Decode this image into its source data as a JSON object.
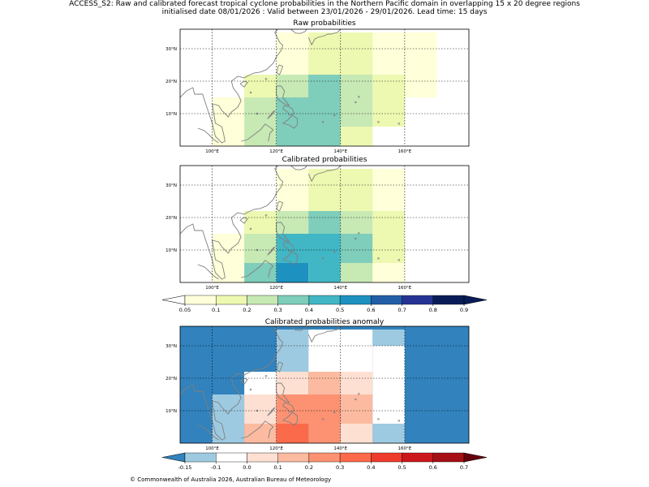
{
  "title": {
    "line1": "ACCESS_S2: Raw and calibrated forecast tropical cyclone probabilities in the Northern Pacific domain in overlapping 15 x 20 degree regions",
    "line2": "initialised date 08/01/2026 :  Valid between 23/01/2026 - 29/01/2026. Lead time: 15 days"
  },
  "footer": "© Commonwealth of Australia 2026, Australian Bureau of Meteorology",
  "colors": {
    "coast": "#808080",
    "grid": "#000000"
  },
  "chart_data": [
    {
      "type": "heatmap",
      "title": "Raw probabilities",
      "lon_range": [
        90,
        180
      ],
      "lat_range": [
        0,
        36
      ],
      "xticks": [
        100,
        120,
        140,
        160
      ],
      "xtick_labels": [
        "100°E",
        "120°E",
        "140°E",
        "160°E"
      ],
      "yticks": [
        10,
        20,
        30
      ],
      "ytick_labels": [
        "10°N",
        "20°N",
        "30°N"
      ],
      "cells": [
        {
          "lon": [
            100,
            110
          ],
          "lat": [
            0,
            15
          ],
          "color": "#ffffd9"
        },
        {
          "lon": [
            110,
            120
          ],
          "lat": [
            0,
            6
          ],
          "color": "#c7e9b4"
        },
        {
          "lon": [
            110,
            120
          ],
          "lat": [
            6,
            15
          ],
          "color": "#c7e9b4"
        },
        {
          "lon": [
            110,
            120
          ],
          "lat": [
            15,
            22
          ],
          "color": "#edf8b1"
        },
        {
          "lon": [
            120,
            140
          ],
          "lat": [
            0,
            22
          ],
          "color": "#7fcdbb"
        },
        {
          "lon": [
            120,
            130
          ],
          "lat": [
            15,
            22
          ],
          "color": "#c7e9b4"
        },
        {
          "lon": [
            120,
            130
          ],
          "lat": [
            22,
            30
          ],
          "color": "#ffffd9"
        },
        {
          "lon": [
            130,
            140
          ],
          "lat": [
            22,
            30
          ],
          "color": "#edf8b1"
        },
        {
          "lon": [
            130,
            140
          ],
          "lat": [
            15,
            22
          ],
          "color": "#7fcdbb"
        },
        {
          "lon": [
            140,
            150
          ],
          "lat": [
            15,
            22
          ],
          "color": "#c7e9b4"
        },
        {
          "lon": [
            140,
            150
          ],
          "lat": [
            6,
            15
          ],
          "color": "#c7e9b4"
        },
        {
          "lon": [
            140,
            150
          ],
          "lat": [
            0,
            6
          ],
          "color": "#edf8b1"
        },
        {
          "lon": [
            150,
            160
          ],
          "lat": [
            6,
            22
          ],
          "color": "#edf8b1"
        },
        {
          "lon": [
            130,
            150
          ],
          "lat": [
            22,
            30
          ],
          "color": "#edf8b1"
        },
        {
          "lon": [
            120,
            130
          ],
          "lat": [
            30,
            35
          ],
          "color": "#ffffd9"
        },
        {
          "lon": [
            130,
            150
          ],
          "lat": [
            30,
            35
          ],
          "color": "#edf8b1"
        },
        {
          "lon": [
            150,
            160
          ],
          "lat": [
            22,
            35
          ],
          "color": "#ffffd9"
        },
        {
          "lon": [
            160,
            170
          ],
          "lat": [
            15,
            35
          ],
          "color": "#ffffd9"
        }
      ]
    },
    {
      "type": "heatmap",
      "title": "Calibrated probabilities",
      "lon_range": [
        90,
        180
      ],
      "lat_range": [
        0,
        36
      ],
      "xticks": [
        100,
        120,
        140,
        160
      ],
      "xtick_labels": [
        "100°E",
        "120°E",
        "140°E",
        "160°E"
      ],
      "yticks": [
        10,
        20,
        30
      ],
      "ytick_labels": [
        "10°N",
        "20°N",
        "30°N"
      ],
      "cells": [
        {
          "lon": [
            100,
            110
          ],
          "lat": [
            0,
            15
          ],
          "color": "#ffffd9"
        },
        {
          "lon": [
            110,
            120
          ],
          "lat": [
            0,
            6
          ],
          "color": "#7fcdbb"
        },
        {
          "lon": [
            110,
            120
          ],
          "lat": [
            6,
            15
          ],
          "color": "#c7e9b4"
        },
        {
          "lon": [
            110,
            120
          ],
          "lat": [
            15,
            22
          ],
          "color": "#edf8b1"
        },
        {
          "lon": [
            120,
            130
          ],
          "lat": [
            0,
            6
          ],
          "color": "#1d91c0"
        },
        {
          "lon": [
            120,
            140
          ],
          "lat": [
            6,
            15
          ],
          "color": "#41b6c4"
        },
        {
          "lon": [
            130,
            140
          ],
          "lat": [
            0,
            6
          ],
          "color": "#41b6c4"
        },
        {
          "lon": [
            120,
            130
          ],
          "lat": [
            15,
            22
          ],
          "color": "#c7e9b4"
        },
        {
          "lon": [
            130,
            140
          ],
          "lat": [
            15,
            22
          ],
          "color": "#7fcdbb"
        },
        {
          "lon": [
            140,
            150
          ],
          "lat": [
            6,
            15
          ],
          "color": "#7fcdbb"
        },
        {
          "lon": [
            140,
            150
          ],
          "lat": [
            15,
            22
          ],
          "color": "#c7e9b4"
        },
        {
          "lon": [
            140,
            150
          ],
          "lat": [
            0,
            6
          ],
          "color": "#c7e9b4"
        },
        {
          "lon": [
            150,
            160
          ],
          "lat": [
            6,
            22
          ],
          "color": "#edf8b1"
        },
        {
          "lon": [
            150,
            160
          ],
          "lat": [
            0,
            6
          ],
          "color": "#ffffd9"
        },
        {
          "lon": [
            120,
            130
          ],
          "lat": [
            22,
            30
          ],
          "color": "#ffffd9"
        },
        {
          "lon": [
            130,
            150
          ],
          "lat": [
            22,
            30
          ],
          "color": "#edf8b1"
        },
        {
          "lon": [
            120,
            130
          ],
          "lat": [
            30,
            35
          ],
          "color": "#ffffd9"
        },
        {
          "lon": [
            130,
            150
          ],
          "lat": [
            30,
            35
          ],
          "color": "#edf8b1"
        },
        {
          "lon": [
            150,
            160
          ],
          "lat": [
            22,
            35
          ],
          "color": "#ffffd9"
        }
      ]
    },
    {
      "type": "heatmap",
      "title": "Calibrated probabilities anomaly",
      "lon_range": [
        90,
        180
      ],
      "lat_range": [
        0,
        36
      ],
      "background": "#3182bd",
      "xticks": [
        100,
        120,
        140,
        160
      ],
      "xtick_labels": [
        "100°E",
        "120°E",
        "140°E",
        "160°E"
      ],
      "yticks": [
        10,
        20,
        30
      ],
      "ytick_labels": [
        "10°N",
        "20°N",
        "30°N"
      ],
      "cells": [
        {
          "lon": [
            100,
            110
          ],
          "lat": [
            0,
            15
          ],
          "color": "#9ecae1"
        },
        {
          "lon": [
            110,
            120
          ],
          "lat": [
            0,
            6
          ],
          "color": "#fcbba1"
        },
        {
          "lon": [
            110,
            120
          ],
          "lat": [
            6,
            11
          ],
          "color": "#fee0d2"
        },
        {
          "lon": [
            110,
            120
          ],
          "lat": [
            11,
            15
          ],
          "color": "#fee0d2"
        },
        {
          "lon": [
            110,
            120
          ],
          "lat": [
            15,
            22
          ],
          "color": "#ffffff"
        },
        {
          "lon": [
            120,
            130
          ],
          "lat": [
            0,
            6
          ],
          "color": "#fb6a4a"
        },
        {
          "lon": [
            120,
            140
          ],
          "lat": [
            6,
            15
          ],
          "color": "#fc9272"
        },
        {
          "lon": [
            130,
            140
          ],
          "lat": [
            0,
            6
          ],
          "color": "#fc9272"
        },
        {
          "lon": [
            120,
            130
          ],
          "lat": [
            15,
            22
          ],
          "color": "#fee0d2"
        },
        {
          "lon": [
            130,
            140
          ],
          "lat": [
            15,
            22
          ],
          "color": "#fcbba1"
        },
        {
          "lon": [
            140,
            150
          ],
          "lat": [
            6,
            15
          ],
          "color": "#fcbba1"
        },
        {
          "lon": [
            140,
            150
          ],
          "lat": [
            15,
            22
          ],
          "color": "#fee0d2"
        },
        {
          "lon": [
            140,
            150
          ],
          "lat": [
            0,
            6
          ],
          "color": "#fee0d2"
        },
        {
          "lon": [
            150,
            160
          ],
          "lat": [
            0,
            6
          ],
          "color": "#9ecae1"
        },
        {
          "lon": [
            150,
            160
          ],
          "lat": [
            6,
            22
          ],
          "color": "#ffffff"
        },
        {
          "lon": [
            120,
            130
          ],
          "lat": [
            22,
            30
          ],
          "color": "#9ecae1"
        },
        {
          "lon": [
            130,
            150
          ],
          "lat": [
            22,
            30
          ],
          "color": "#ffffff"
        },
        {
          "lon": [
            120,
            130
          ],
          "lat": [
            30,
            35
          ],
          "color": "#9ecae1"
        },
        {
          "lon": [
            130,
            150
          ],
          "lat": [
            30,
            35
          ],
          "color": "#ffffff"
        },
        {
          "lon": [
            150,
            160
          ],
          "lat": [
            22,
            30
          ],
          "color": "#ffffff"
        },
        {
          "lon": [
            150,
            160
          ],
          "lat": [
            30,
            35
          ],
          "color": "#9ecae1"
        }
      ]
    }
  ],
  "colorbars": [
    {
      "labels": [
        "0.05",
        "0.1",
        "0.2",
        "0.3",
        "0.4",
        "0.5",
        "0.6",
        "0.7",
        "0.8",
        "0.9"
      ],
      "under_color": "#ffffff",
      "colors": [
        "#ffffd9",
        "#edf8b1",
        "#c7e9b4",
        "#7fcdbb",
        "#41b6c4",
        "#1d91c0",
        "#225ea8",
        "#253494",
        "#081d58"
      ],
      "over_color": "#081d58"
    },
    {
      "labels": [
        "-0.15",
        "-0.1",
        "0.0",
        "0.1",
        "0.2",
        "0.3",
        "0.4",
        "0.5",
        "0.6",
        "0.7"
      ],
      "under_color": "#3182bd",
      "colors": [
        "#9ecae1",
        "#ffffff",
        "#fee0d2",
        "#fcbba1",
        "#fc9272",
        "#fb6a4a",
        "#ef3b2c",
        "#cb181d",
        "#a50f15"
      ],
      "over_color": "#67000d"
    }
  ]
}
